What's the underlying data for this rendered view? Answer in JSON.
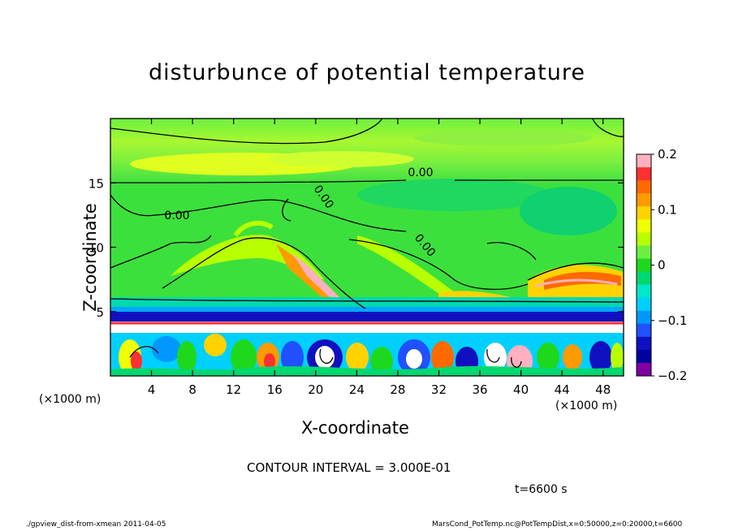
{
  "chart_data": {
    "type": "heatmap",
    "title": "disturbunce of potential temperature",
    "xlabel": "X-coordinate",
    "ylabel": "Z-coordinate",
    "x_unit_left": "(×1000 m)",
    "x_unit_right": "(×1000 m)",
    "x_ticks": [
      "4",
      "8",
      "12",
      "16",
      "20",
      "24",
      "28",
      "32",
      "36",
      "40",
      "44",
      "48"
    ],
    "y_ticks": [
      "5",
      "10",
      "15"
    ],
    "xlim": [
      0,
      50
    ],
    "ylim": [
      0,
      20
    ],
    "colorbar": {
      "ticks": [
        "0.2",
        "0.1",
        "0",
        "−0.1",
        "−0.2"
      ],
      "range": [
        -0.2,
        0.2
      ],
      "colors": [
        "#ffb0c0",
        "#ff3030",
        "#ff6a00",
        "#ff9a00",
        "#ffd200",
        "#f0ff00",
        "#b8ff00",
        "#6cf040",
        "#1ed81e",
        "#00d870",
        "#00e8c8",
        "#00d0ff",
        "#0098ff",
        "#2050ff",
        "#1010c0",
        "#0000a0",
        "#8000a0"
      ]
    },
    "contour_labels": [
      "0.00",
      "0.00",
      "0.00",
      "0.00"
    ],
    "contour_interval": "CONTOUR INTERVAL = 3.000E-01",
    "time": "t=6600 s"
  },
  "footer": {
    "left": "./gpview_dist-from-xmean  2011-04-05",
    "right": "MarsCond_PotTemp.nc@PotTempDist,x=0:50000,z=0:20000,t=6600"
  }
}
